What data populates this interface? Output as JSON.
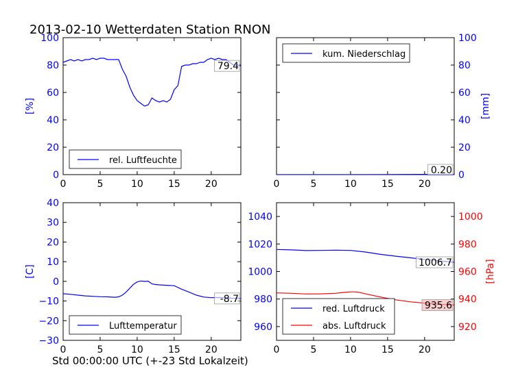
{
  "title": "2013-02-10 Wetterdaten Station RNON",
  "footer_xlabel": "Std 00:00:00 UTC (+-23 Std Lokalzeit)",
  "colors": {
    "blue": "#0000ff",
    "red": "#ff0000",
    "axis": "#000000"
  },
  "chart_data": [
    {
      "id": "humidity",
      "type": "line",
      "ylabel": "[%]",
      "xlim": [
        0,
        24
      ],
      "ylim": [
        0,
        100
      ],
      "xticks": [
        0,
        5,
        10,
        15,
        20
      ],
      "yticks": [
        0,
        20,
        40,
        60,
        80,
        100
      ],
      "legend": "lower-left",
      "last_value_label": "79.4",
      "series": [
        {
          "name": "rel. Luftfeuchte",
          "color": "#0000ff",
          "x": [
            0,
            0.5,
            1,
            1.5,
            2,
            2.5,
            3,
            3.5,
            4,
            4.5,
            5,
            5.5,
            6,
            6.5,
            7,
            7.5,
            8,
            8.5,
            9,
            9.5,
            10,
            10.5,
            11,
            11.5,
            12,
            12.5,
            13,
            13.5,
            14,
            14.5,
            15,
            15.5,
            16,
            16.5,
            17,
            17.5,
            18,
            18.5,
            19,
            19.5,
            20,
            20.5,
            21,
            21.5,
            22,
            22.5,
            23,
            23.5,
            24
          ],
          "y": [
            82,
            83,
            84,
            83,
            84,
            83,
            84,
            84,
            85,
            84,
            85,
            85,
            84,
            84,
            84,
            84,
            77,
            72,
            64,
            58,
            54,
            52,
            50,
            51,
            56,
            54,
            53,
            54,
            53,
            55,
            62,
            65,
            79,
            80,
            80,
            81,
            81,
            82,
            82,
            84,
            85,
            84,
            85,
            84,
            84,
            82,
            80,
            80,
            79.4
          ]
        }
      ]
    },
    {
      "id": "precip",
      "type": "line",
      "ylabel": "[mm]",
      "xlim": [
        0,
        24
      ],
      "ylim": [
        0,
        100
      ],
      "xticks": [
        0,
        5,
        10,
        15,
        20
      ],
      "yticks": [
        0,
        20,
        40,
        60,
        80,
        100
      ],
      "legend": "top-left",
      "last_value_label": "0.20",
      "series": [
        {
          "name": "kum. Niederschlag",
          "color": "#0000ff",
          "x": [
            0,
            5,
            10,
            15,
            20,
            24
          ],
          "y": [
            0,
            0,
            0,
            0.1,
            0.2,
            0.2
          ]
        }
      ]
    },
    {
      "id": "temperature",
      "type": "line",
      "ylabel": "[C]",
      "xlim": [
        0,
        24
      ],
      "ylim": [
        -30,
        40
      ],
      "xticks": [
        0,
        5,
        10,
        15,
        20
      ],
      "yticks": [
        -30,
        -20,
        -10,
        0,
        10,
        20,
        30,
        40
      ],
      "legend": "lower-left",
      "last_value_label": "-8.7",
      "series": [
        {
          "name": "Lufttemperatur",
          "color": "#0000ff",
          "x": [
            0,
            1,
            2,
            3,
            4,
            5,
            6,
            7,
            7.5,
            8,
            8.5,
            9,
            9.5,
            10,
            10.5,
            11,
            11.5,
            12,
            12.5,
            13,
            14,
            15,
            16,
            17,
            18,
            19,
            20,
            21,
            22,
            23,
            24
          ],
          "y": [
            -6.3,
            -6.6,
            -7,
            -7.4,
            -7.6,
            -7.8,
            -7.9,
            -8.1,
            -7.9,
            -7,
            -5.5,
            -3.5,
            -1.5,
            -0.3,
            0.2,
            0,
            0.1,
            -1.3,
            -1.6,
            -1.8,
            -2,
            -2.2,
            -4,
            -5.5,
            -7,
            -8,
            -8.3,
            -8.2,
            -8.4,
            -8.6,
            -8.7
          ]
        }
      ]
    },
    {
      "id": "pressure",
      "type": "line",
      "ylabel_right": "[hPa]",
      "xlim": [
        0,
        24
      ],
      "ylim": [
        950,
        1050
      ],
      "yticks": [
        960,
        980,
        1000,
        1020,
        1040
      ],
      "ylim_right": [
        910,
        1010
      ],
      "yticks_right": [
        920,
        940,
        960,
        980,
        1000
      ],
      "xticks": [
        0,
        5,
        10,
        15,
        20
      ],
      "legend": "lower-left",
      "series": [
        {
          "name": "red. Luftdruck",
          "color": "#0000ff",
          "axis": "left",
          "last_value_label": "1006.7",
          "x": [
            0,
            2,
            4,
            6,
            8,
            10,
            12,
            14,
            16,
            18,
            20,
            22,
            24
          ],
          "y": [
            1016,
            1015.7,
            1015.2,
            1015.3,
            1015.5,
            1015.3,
            1014.2,
            1012.5,
            1011.2,
            1010,
            1008.8,
            1007.7,
            1006.7
          ]
        },
        {
          "name": "abs. Luftdruck",
          "color": "#ff0000",
          "axis": "right",
          "last_value_label": "935.6",
          "x": [
            0,
            2,
            4,
            6,
            8,
            9,
            10,
            10.5,
            11,
            12,
            14,
            16,
            18,
            20,
            22,
            24
          ],
          "y": [
            944.5,
            944.2,
            943.7,
            943.8,
            944.2,
            944.8,
            945.2,
            945.2,
            945,
            943.8,
            941.5,
            939.5,
            938,
            937,
            936.2,
            935.6
          ]
        }
      ]
    }
  ]
}
